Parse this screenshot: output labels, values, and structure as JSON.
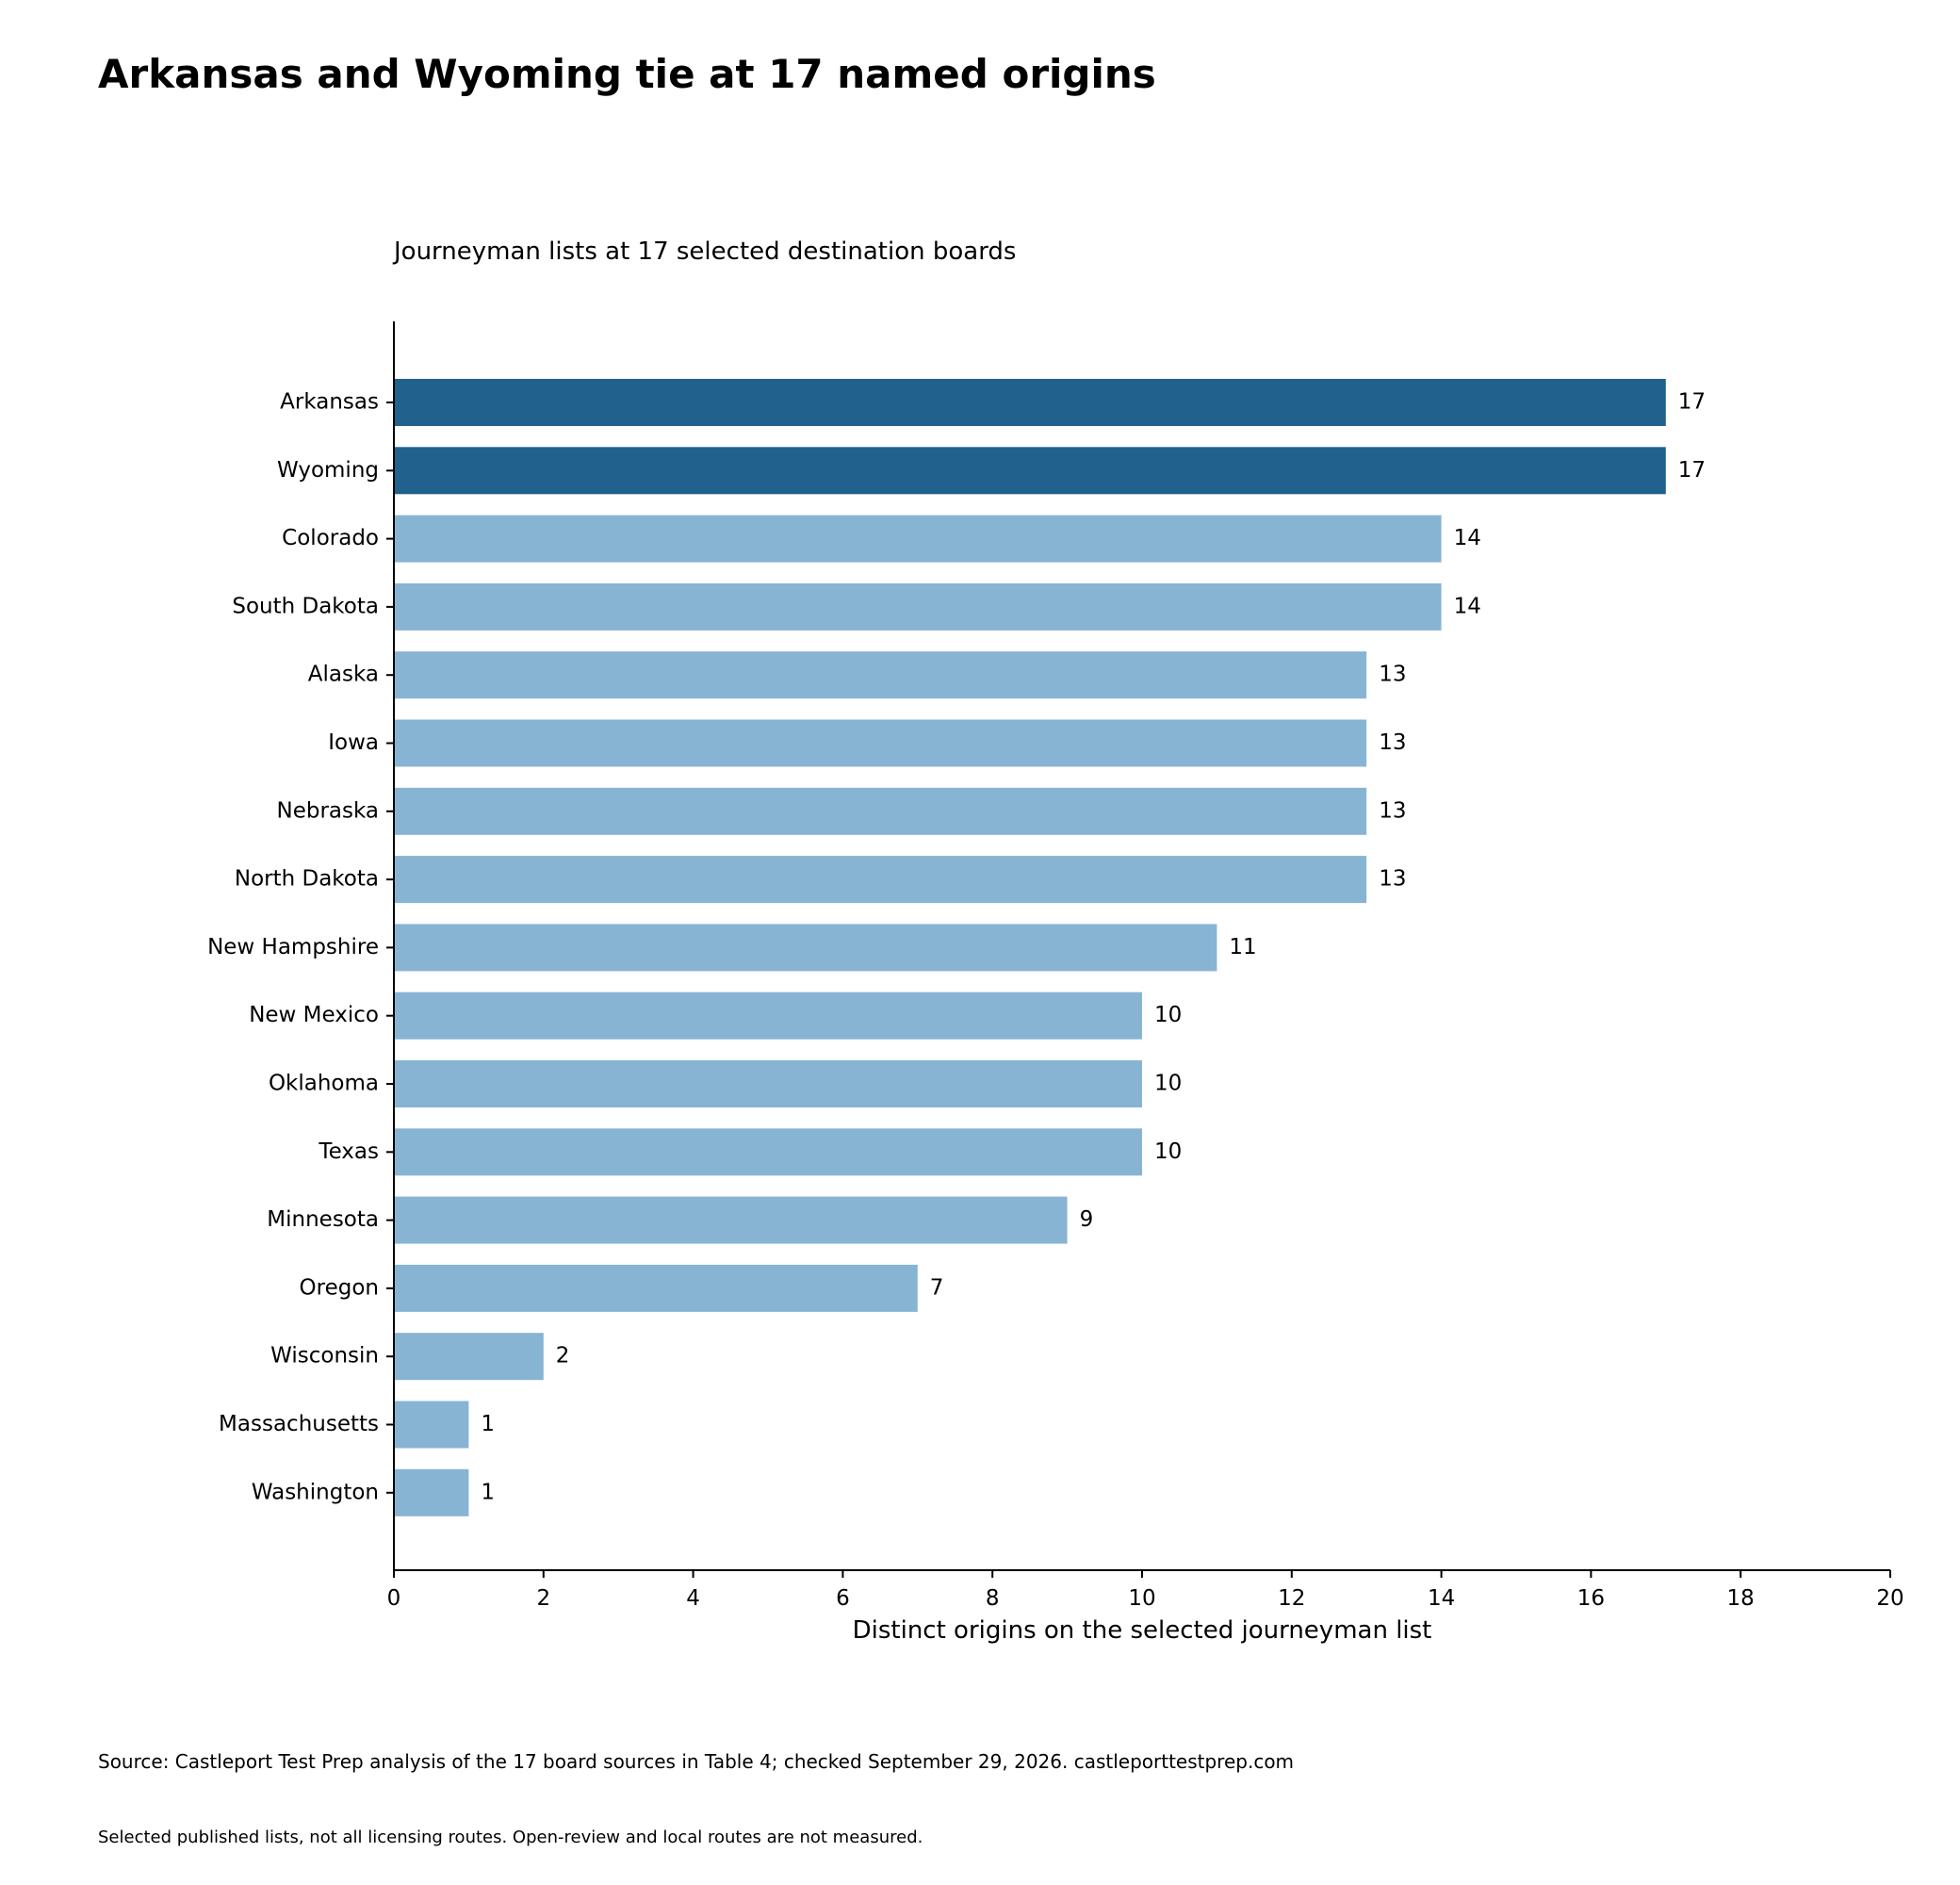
{
  "colors": {
    "highlight": "#20618e",
    "base": "#88b4d4",
    "text": "#000000",
    "background": "#ffffff"
  },
  "chart_data": {
    "type": "bar",
    "orientation": "horizontal",
    "title": "Arkansas and Wyoming tie at 17 named origins",
    "subtitle": "Journeyman lists at 17 selected destination boards",
    "xlabel": "Distinct origins on the selected journeyman list",
    "ylabel": "",
    "xlim": [
      0,
      20
    ],
    "xticks": [
      0,
      2,
      4,
      6,
      8,
      10,
      12,
      14,
      16,
      18,
      20
    ],
    "grid": false,
    "legend": "none",
    "categories": [
      "Arkansas",
      "Wyoming",
      "Colorado",
      "South Dakota",
      "Alaska",
      "Iowa",
      "Nebraska",
      "North Dakota",
      "New Hampshire",
      "New Mexico",
      "Oklahoma",
      "Texas",
      "Minnesota",
      "Oregon",
      "Wisconsin",
      "Massachusetts",
      "Washington"
    ],
    "values": [
      17,
      17,
      14,
      14,
      13,
      13,
      13,
      13,
      11,
      10,
      10,
      10,
      9,
      7,
      2,
      1,
      1
    ],
    "highlighted": [
      "Arkansas",
      "Wyoming"
    ]
  },
  "footnotes": {
    "source": "Source: Castleport Test Prep analysis of the 17 board sources in Table 4; checked September 29, 2026. castleporttestprep.com",
    "note": "Selected published lists, not all licensing routes. Open-review and local routes are not measured."
  }
}
